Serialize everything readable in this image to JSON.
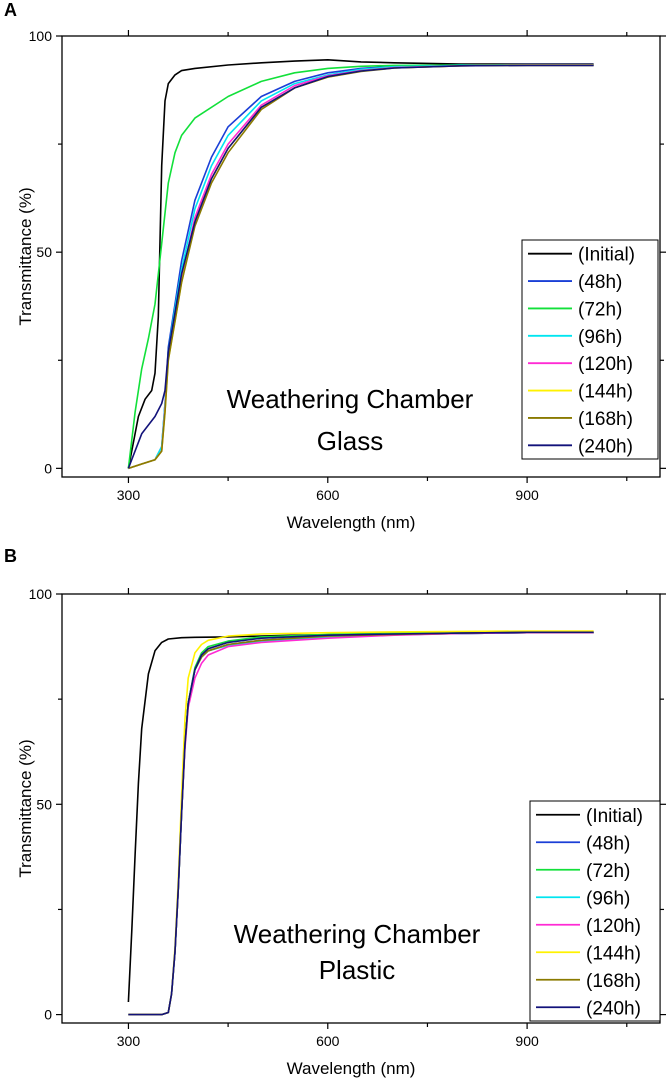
{
  "figure": {
    "panel_labels": [
      "A",
      "B"
    ]
  },
  "series_colors": [
    "#000000",
    "#1a3fd6",
    "#12e03a",
    "#00e5f0",
    "#ff2ad4",
    "#fff200",
    "#8a7a00",
    "#12127a"
  ],
  "chart_data": [
    {
      "type": "line",
      "title": "Weathering Chamber",
      "annotation": [
        "Weathering Chamber",
        "Glass"
      ],
      "xlabel": "Wavelength (nm)",
      "ylabel": "Transmittance (%)",
      "xlim": [
        200,
        1100
      ],
      "ylim": [
        -2,
        100
      ],
      "xticks": [
        300,
        600,
        900
      ],
      "yticks": [
        0,
        50,
        100
      ],
      "legend": "right",
      "series": [
        {
          "name": "(Initial)",
          "x": [
            300,
            315,
            325,
            335,
            340,
            345,
            350,
            355,
            360,
            370,
            380,
            400,
            450,
            500,
            550,
            600,
            650,
            700,
            800,
            900,
            1000
          ],
          "values": [
            0,
            12,
            16,
            18,
            22,
            35,
            70,
            85,
            89,
            91,
            92,
            92.5,
            93.3,
            93.8,
            94.2,
            94.5,
            94,
            93.8,
            93.5,
            93.5,
            93.5
          ]
        },
        {
          "name": "(48h)",
          "x": [
            300,
            320,
            340,
            350,
            355,
            360,
            370,
            380,
            400,
            425,
            450,
            500,
            550,
            600,
            650,
            700,
            800,
            900,
            1000
          ],
          "values": [
            0,
            1,
            2,
            5,
            15,
            28,
            38,
            48,
            62,
            72,
            79,
            86,
            89.5,
            91.5,
            92.5,
            93,
            93.3,
            93.4,
            93.4
          ]
        },
        {
          "name": "(72h)",
          "x": [
            300,
            310,
            320,
            330,
            340,
            350,
            360,
            370,
            380,
            400,
            450,
            500,
            550,
            600,
            650,
            700,
            800,
            900,
            1000
          ],
          "values": [
            0,
            13,
            23,
            30,
            38,
            52,
            66,
            73,
            77,
            81,
            86,
            89.5,
            91.5,
            92.5,
            93,
            93.2,
            93.3,
            93.3,
            93.3
          ]
        },
        {
          "name": "(96h)",
          "x": [
            300,
            320,
            340,
            350,
            355,
            360,
            370,
            380,
            400,
            425,
            450,
            500,
            550,
            600,
            650,
            700,
            800,
            900,
            1000
          ],
          "values": [
            0,
            1,
            2,
            5,
            15,
            27,
            37,
            46,
            60,
            70,
            77,
            85,
            89,
            91,
            92.3,
            92.9,
            93.2,
            93.3,
            93.3
          ]
        },
        {
          "name": "(120h)",
          "x": [
            300,
            320,
            340,
            350,
            355,
            360,
            370,
            380,
            400,
            425,
            450,
            500,
            550,
            600,
            650,
            700,
            800,
            900,
            1000
          ],
          "values": [
            0,
            1,
            2,
            4,
            14,
            26,
            35,
            44,
            58,
            68,
            75,
            84,
            88.5,
            90.8,
            92,
            92.7,
            93.1,
            93.3,
            93.3
          ]
        },
        {
          "name": "(144h)",
          "x": [
            300,
            320,
            340,
            350,
            355,
            360,
            370,
            380,
            400,
            425,
            450,
            500,
            550,
            600,
            650,
            700,
            800,
            900,
            1000
          ],
          "values": [
            0,
            1,
            2,
            4,
            13,
            25,
            34,
            43,
            57,
            67,
            74,
            83.5,
            88,
            90.5,
            91.9,
            92.6,
            93.1,
            93.3,
            93.3
          ]
        },
        {
          "name": "(168h)",
          "x": [
            300,
            320,
            340,
            350,
            355,
            360,
            370,
            380,
            400,
            425,
            450,
            500,
            550,
            600,
            650,
            700,
            800,
            900,
            1000
          ],
          "values": [
            0,
            1,
            2,
            4,
            13,
            25,
            34,
            43,
            56,
            66,
            73,
            83,
            88,
            90.5,
            91.8,
            92.6,
            93.1,
            93.2,
            93.2
          ]
        },
        {
          "name": "(240h)",
          "x": [
            300,
            320,
            340,
            350,
            355,
            360,
            370,
            380,
            400,
            425,
            450,
            500,
            550,
            600,
            650,
            700,
            800,
            900,
            1000
          ],
          "values": [
            0,
            8,
            12,
            15,
            18,
            27,
            36,
            45,
            57,
            67,
            74,
            83.5,
            88,
            90.6,
            91.9,
            92.6,
            93.1,
            93.2,
            93.2
          ]
        }
      ]
    },
    {
      "type": "line",
      "title": "Weathering Chamber",
      "annotation": [
        "Weathering Chamber",
        "Plastic"
      ],
      "xlabel": "Wavelength (nm)",
      "ylabel": "Transmittance (%)",
      "xlim": [
        200,
        1100
      ],
      "ylim": [
        -2,
        100
      ],
      "xticks": [
        300,
        600,
        900
      ],
      "yticks": [
        0,
        50,
        100
      ],
      "legend": "right",
      "series": [
        {
          "name": "(Initial)",
          "x": [
            300,
            305,
            310,
            315,
            320,
            330,
            340,
            350,
            360,
            380,
            400,
            450,
            500,
            550,
            600,
            700,
            800,
            900,
            950,
            1000
          ],
          "values": [
            3,
            20,
            38,
            55,
            68,
            81,
            86.5,
            88.5,
            89.3,
            89.6,
            89.7,
            89.8,
            90,
            90.2,
            90.3,
            90.5,
            90.6,
            90.8,
            90.8,
            90.8
          ]
        },
        {
          "name": "(48h)",
          "x": [
            300,
            350,
            360,
            365,
            370,
            375,
            380,
            385,
            390,
            400,
            410,
            420,
            450,
            500,
            600,
            700,
            800,
            900,
            1000
          ],
          "values": [
            0,
            0,
            0.5,
            5,
            15,
            30,
            48,
            64,
            74,
            82,
            85,
            86.5,
            88,
            89,
            90,
            90.3,
            90.6,
            90.8,
            90.8
          ]
        },
        {
          "name": "(72h)",
          "x": [
            300,
            350,
            360,
            365,
            370,
            375,
            380,
            385,
            390,
            400,
            410,
            420,
            450,
            500,
            600,
            700,
            800,
            900,
            1000
          ],
          "values": [
            0,
            0,
            0.5,
            5,
            15,
            30,
            48,
            64,
            74,
            82.5,
            86,
            87.5,
            88.8,
            89.8,
            90.4,
            90.7,
            90.9,
            91,
            91
          ]
        },
        {
          "name": "(96h)",
          "x": [
            300,
            350,
            360,
            365,
            370,
            375,
            380,
            385,
            390,
            400,
            410,
            420,
            450,
            500,
            600,
            700,
            800,
            900,
            1000
          ],
          "values": [
            0,
            0,
            0.5,
            5,
            15,
            30,
            48,
            64,
            74,
            82,
            85,
            86.5,
            87.8,
            88.8,
            89.8,
            90.3,
            90.6,
            90.8,
            90.8
          ]
        },
        {
          "name": "(120h)",
          "x": [
            300,
            350,
            360,
            365,
            370,
            375,
            380,
            385,
            390,
            400,
            410,
            420,
            450,
            500,
            600,
            700,
            800,
            900,
            1000
          ],
          "values": [
            0,
            0,
            0.5,
            5,
            15,
            30,
            48,
            63,
            73,
            80,
            83.5,
            85.5,
            87.5,
            88.5,
            89.5,
            90.2,
            90.6,
            90.8,
            90.8
          ]
        },
        {
          "name": "(144h)",
          "x": [
            300,
            350,
            360,
            365,
            370,
            375,
            380,
            385,
            390,
            400,
            410,
            420,
            450,
            500,
            600,
            700,
            800,
            900,
            1000
          ],
          "values": [
            0,
            0,
            0.5,
            5,
            16,
            32,
            52,
            70,
            80,
            86,
            88,
            89,
            90,
            90.5,
            90.8,
            91,
            91.1,
            91.2,
            91.2
          ]
        },
        {
          "name": "(168h)",
          "x": [
            300,
            350,
            360,
            365,
            370,
            375,
            380,
            385,
            390,
            400,
            410,
            420,
            450,
            500,
            600,
            700,
            800,
            900,
            1000
          ],
          "values": [
            0,
            0,
            0.5,
            5,
            15,
            30,
            48,
            64,
            74,
            82,
            85,
            86.5,
            88,
            89,
            90,
            90.4,
            90.7,
            90.9,
            90.9
          ]
        },
        {
          "name": "(240h)",
          "x": [
            300,
            350,
            360,
            365,
            370,
            375,
            380,
            385,
            390,
            400,
            410,
            420,
            450,
            500,
            600,
            700,
            800,
            900,
            1000
          ],
          "values": [
            0,
            0,
            0.5,
            5,
            15,
            30,
            48,
            64,
            74,
            82,
            85.5,
            87,
            88.5,
            89.5,
            90.2,
            90.5,
            90.7,
            90.9,
            90.9
          ]
        }
      ]
    }
  ]
}
